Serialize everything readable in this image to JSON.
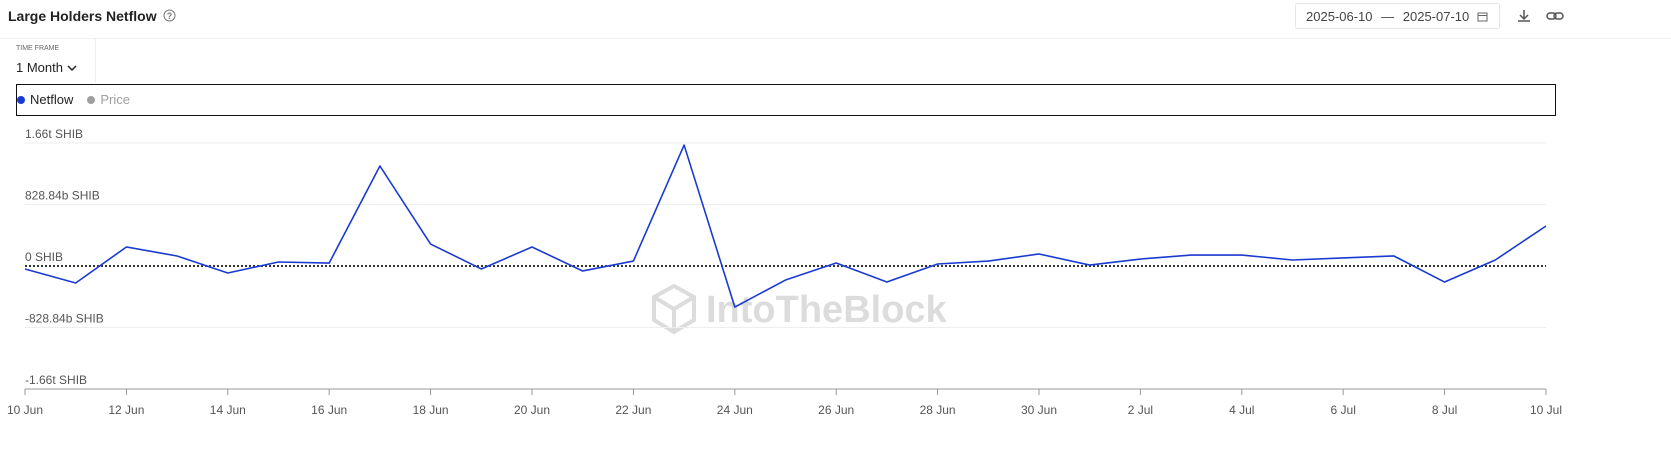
{
  "header": {
    "title": "Large Holders Netflow",
    "date_start": "2025-06-10",
    "date_separator": "—",
    "date_end": "2025-07-10",
    "time_frame_label": "TIME FRAME",
    "time_frame": "1 Month"
  },
  "chart_data": {
    "type": "line",
    "watermark": "IntoTheBlock",
    "categories": [
      "10 Jun",
      null,
      "12 Jun",
      null,
      "14 Jun",
      null,
      "16 Jun",
      null,
      "18 Jun",
      null,
      "20 Jun",
      null,
      "22 Jun",
      null,
      "24 Jun",
      null,
      "26 Jun",
      null,
      "28 Jun",
      null,
      "30 Jun",
      null,
      "2 Jul",
      null,
      "4 Jul",
      null,
      "6 Jul",
      null,
      "8 Jul",
      null,
      "10 Jul"
    ],
    "series": [
      {
        "name": "Netflow",
        "color": "#1a3bd1",
        "values": [
          -40000000000,
          -229000000000,
          256000000000,
          135000000000,
          -94000000000,
          54000000000,
          40000000000,
          1348000000000,
          296000000000,
          -40000000000,
          256000000000,
          -67000000000,
          67000000000,
          1630000000000,
          -553000000000,
          -189000000000,
          40000000000,
          -216000000000,
          27000000000,
          67000000000,
          162000000000,
          13000000000,
          94000000000,
          148000000000,
          148000000000,
          81000000000,
          108000000000,
          135000000000,
          -216000000000,
          81000000000,
          539000000000
        ]
      }
    ],
    "hidden_series": [
      {
        "name": "Price",
        "color": "#9e9e9e"
      }
    ],
    "ylim": [
      -1657680000000,
      1657680000000
    ],
    "yticks": [
      {
        "value": -1657680000000,
        "label": "-1.66t SHIB"
      },
      {
        "value": -828840000000,
        "label": "-828.84b SHIB"
      },
      {
        "value": 0,
        "label": "0 SHIB"
      },
      {
        "value": 828840000000,
        "label": "828.84b SHIB"
      },
      {
        "value": 1657680000000,
        "label": "1.66t SHIB"
      }
    ],
    "grid": true
  }
}
